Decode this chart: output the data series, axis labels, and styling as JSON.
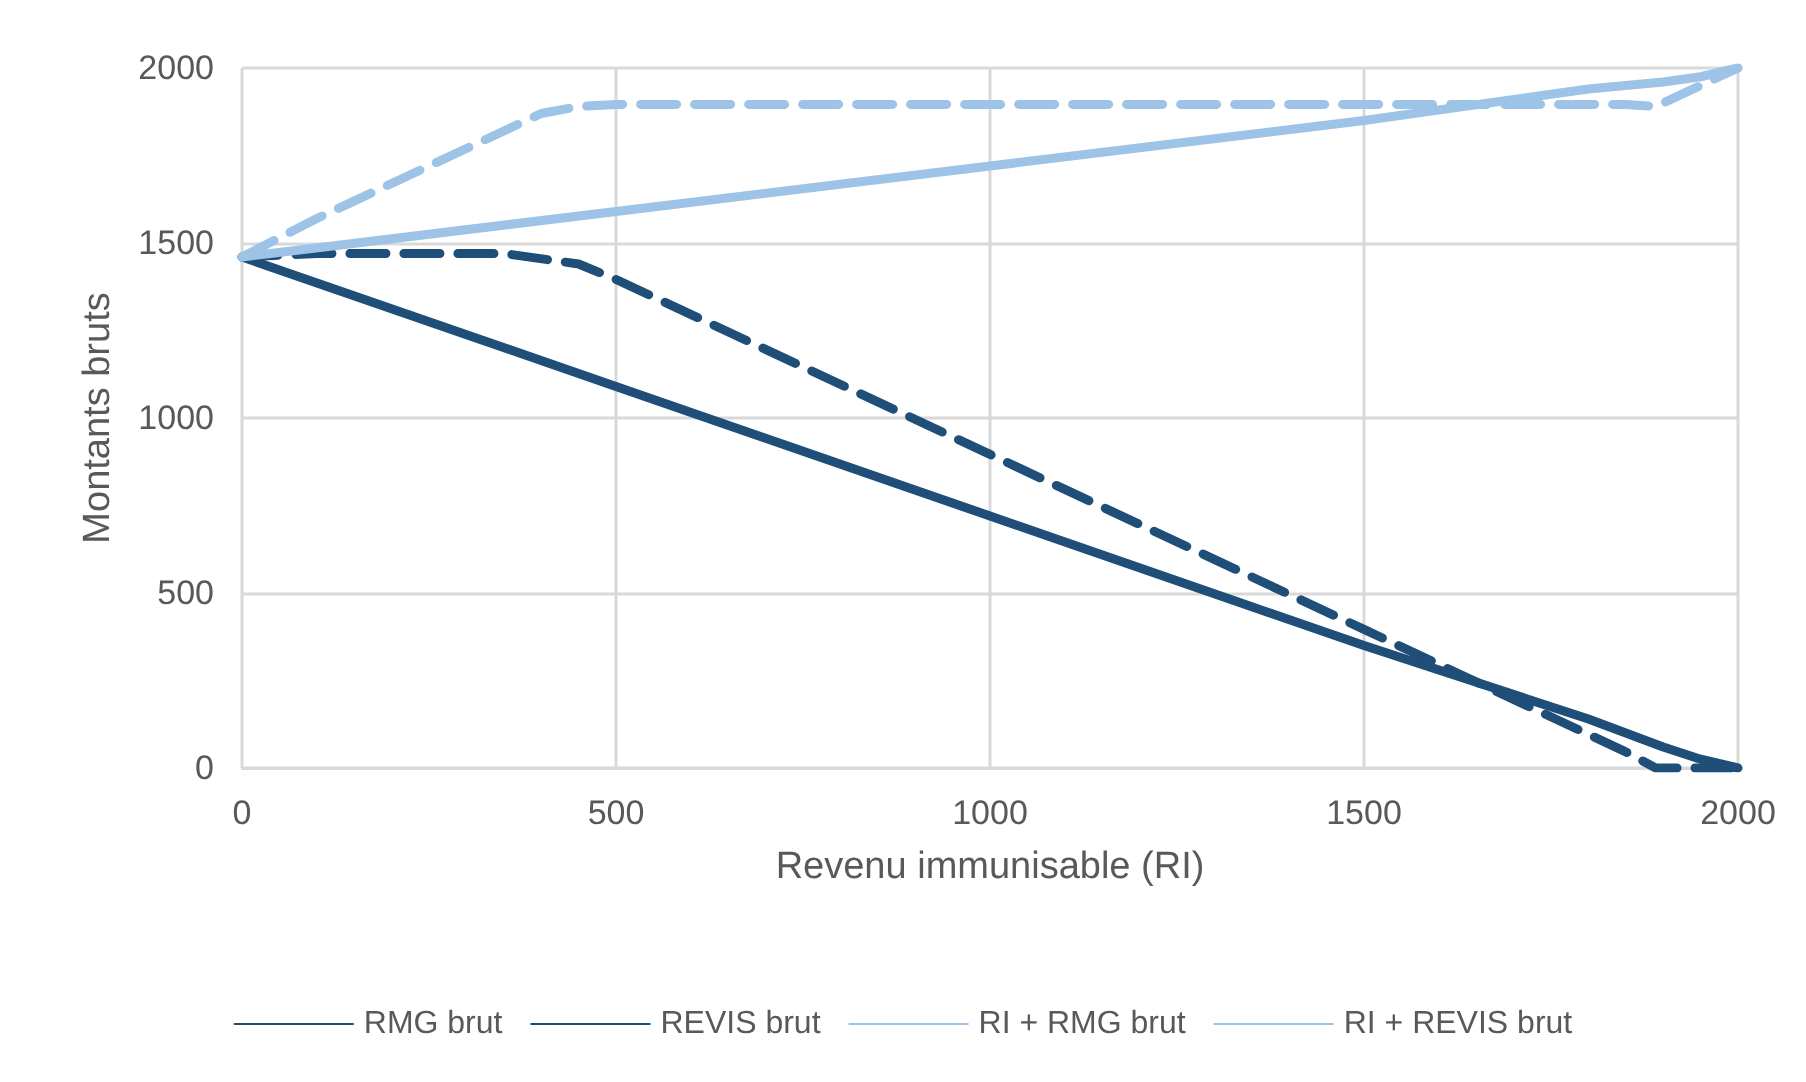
{
  "chart_data": {
    "type": "line",
    "xlabel": "Revenu immunisable (RI)",
    "ylabel": "Montants bruts",
    "xlim": [
      0,
      2000
    ],
    "xticks": [
      0,
      500,
      1000,
      1500,
      2000
    ],
    "ylim": [
      0,
      2000
    ],
    "yticks": [
      0,
      500,
      1000,
      1500,
      2000
    ],
    "grid": true,
    "legend": "bottom",
    "marker": "none",
    "series": [
      {
        "name": "RMG brut",
        "color": "#1f4e79",
        "line_style": "dashed",
        "x": [
          0,
          100,
          350,
          450,
          500,
          1000,
          1500,
          1850,
          1890,
          2000
        ],
        "values": [
          1460,
          1470,
          1470,
          1440,
          1396,
          896,
          396,
          46,
          0,
          0
        ]
      },
      {
        "name": "REVIS brut",
        "color": "#1f4e79",
        "line_style": "solid",
        "x": [
          0,
          500,
          1000,
          1500,
          1800,
          1900,
          1950,
          2000
        ],
        "values": [
          1460,
          1090,
          720,
          350,
          140,
          60,
          25,
          0
        ]
      },
      {
        "name": "RI + RMG brut",
        "color": "#9dc3e6",
        "line_style": "dashed",
        "x": [
          0,
          100,
          200,
          300,
          400,
          450,
          500,
          1000,
          1500,
          1850,
          1890,
          2000
        ],
        "values": [
          1460,
          1570,
          1670,
          1770,
          1870,
          1890,
          1896,
          1896,
          1896,
          1896,
          1890,
          2000
        ]
      },
      {
        "name": "RI + REVIS brut",
        "color": "#9dc3e6",
        "line_style": "solid",
        "x": [
          0,
          500,
          1000,
          1500,
          1800,
          1900,
          1950,
          2000
        ],
        "values": [
          1460,
          1590,
          1720,
          1850,
          1940,
          1960,
          1975,
          2000
        ]
      }
    ]
  }
}
